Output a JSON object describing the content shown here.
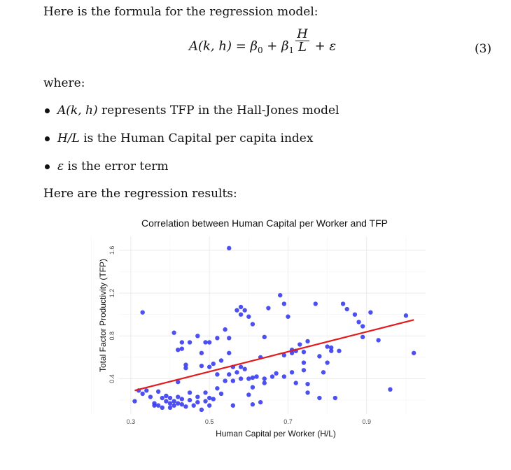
{
  "paper": {
    "intro": "Here is the formula for the regression model:",
    "equation": {
      "lhs": "A(k, h)",
      "eq": " = ",
      "beta0": "β",
      "beta0_sub": "0",
      "plus1": " + ",
      "beta1": "β",
      "beta1_sub": "1",
      "frac_num": "H",
      "frac_den": "L",
      "plus2": " + ",
      "eps": "ε",
      "number": "(3)"
    },
    "where": "where:",
    "bullets": [
      {
        "sym": "A(k, h)",
        "text": " represents TFP in the Hall-Jones model"
      },
      {
        "sym": "H/L",
        "text": " is the Human Capital per capita index"
      },
      {
        "sym": "ε",
        "text": " is the error term"
      }
    ],
    "results_intro": "Here are the regression results:"
  },
  "colors": {
    "points": "#3a3df0",
    "fit_line": "#e31a1c",
    "grid": "#ebebeb",
    "axis_text": "#4d4d4d"
  },
  "chart_data": {
    "type": "scatter",
    "title": "Correlation between Human Capital per Worker and TFP",
    "xlabel": "Human Capital per Worker (H/L)",
    "ylabel": "Total Factor Productivity (TFP)",
    "xlim": [
      0.27,
      1.05
    ],
    "ylim": [
      0.07,
      1.73
    ],
    "x_ticks": [
      "0.3",
      "0.5",
      "0.7",
      "0.9"
    ],
    "y_ticks": [
      "0.4",
      "0.8",
      "1.2",
      "1.6"
    ],
    "grid": true,
    "fit_line": {
      "x": [
        0.31,
        1.02
      ],
      "y": [
        0.29,
        0.95
      ]
    },
    "points": [
      [
        0.31,
        0.19
      ],
      [
        0.32,
        0.29
      ],
      [
        0.33,
        0.26
      ],
      [
        0.34,
        0.29
      ],
      [
        0.35,
        0.23
      ],
      [
        0.36,
        0.17
      ],
      [
        0.36,
        0.15
      ],
      [
        0.37,
        0.28
      ],
      [
        0.37,
        0.15
      ],
      [
        0.38,
        0.22
      ],
      [
        0.38,
        0.13
      ],
      [
        0.39,
        0.19
      ],
      [
        0.39,
        0.24
      ],
      [
        0.4,
        0.17
      ],
      [
        0.4,
        0.13
      ],
      [
        0.4,
        0.22
      ],
      [
        0.41,
        0.15
      ],
      [
        0.41,
        0.19
      ],
      [
        0.42,
        0.23
      ],
      [
        0.42,
        0.17
      ],
      [
        0.42,
        0.37
      ],
      [
        0.43,
        0.21
      ],
      [
        0.43,
        0.16
      ],
      [
        0.44,
        0.14
      ],
      [
        0.45,
        0.27
      ],
      [
        0.45,
        0.2
      ],
      [
        0.46,
        0.15
      ],
      [
        0.47,
        0.23
      ],
      [
        0.47,
        0.18
      ],
      [
        0.48,
        0.11
      ],
      [
        0.49,
        0.27
      ],
      [
        0.49,
        0.19
      ],
      [
        0.5,
        0.22
      ],
      [
        0.5,
        0.15
      ],
      [
        0.51,
        0.21
      ],
      [
        0.52,
        0.31
      ],
      [
        0.52,
        0.44
      ],
      [
        0.53,
        0.26
      ],
      [
        0.54,
        0.38
      ],
      [
        0.56,
        0.15
      ],
      [
        0.56,
        0.38
      ],
      [
        0.57,
        0.46
      ],
      [
        0.58,
        0.4
      ],
      [
        0.58,
        0.51
      ],
      [
        0.59,
        0.49
      ],
      [
        0.6,
        0.4
      ],
      [
        0.6,
        0.25
      ],
      [
        0.61,
        0.41
      ],
      [
        0.61,
        0.16
      ],
      [
        0.62,
        0.42
      ],
      [
        0.63,
        0.18
      ],
      [
        0.64,
        0.4
      ],
      [
        0.64,
        0.36
      ],
      [
        0.66,
        0.42
      ],
      [
        0.67,
        0.45
      ],
      [
        0.69,
        0.42
      ],
      [
        0.69,
        0.62
      ],
      [
        0.71,
        0.46
      ],
      [
        0.71,
        0.67
      ],
      [
        0.72,
        0.36
      ],
      [
        0.74,
        0.48
      ],
      [
        0.74,
        0.55
      ],
      [
        0.75,
        0.35
      ],
      [
        0.75,
        0.27
      ],
      [
        0.78,
        0.22
      ],
      [
        0.78,
        0.61
      ],
      [
        0.79,
        0.46
      ],
      [
        0.8,
        0.55
      ],
      [
        0.81,
        0.66
      ],
      [
        0.82,
        0.22
      ],
      [
        0.83,
        0.66
      ],
      [
        0.33,
        1.02
      ],
      [
        0.42,
        0.67
      ],
      [
        0.43,
        0.68
      ],
      [
        0.43,
        0.74
      ],
      [
        0.44,
        0.5
      ],
      [
        0.44,
        0.53
      ],
      [
        0.45,
        0.74
      ],
      [
        0.47,
        0.8
      ],
      [
        0.48,
        0.64
      ],
      [
        0.48,
        0.52
      ],
      [
        0.49,
        0.74
      ],
      [
        0.5,
        0.74
      ],
      [
        0.5,
        0.51
      ],
      [
        0.51,
        0.54
      ],
      [
        0.52,
        0.78
      ],
      [
        0.53,
        0.57
      ],
      [
        0.54,
        0.86
      ],
      [
        0.55,
        0.44
      ],
      [
        0.55,
        0.64
      ],
      [
        0.55,
        0.78
      ],
      [
        0.56,
        0.51
      ],
      [
        0.57,
        1.04
      ],
      [
        0.58,
        1.0
      ],
      [
        0.58,
        1.07
      ],
      [
        0.59,
        1.04
      ],
      [
        0.6,
        0.98
      ],
      [
        0.61,
        0.91
      ],
      [
        0.64,
        0.79
      ],
      [
        0.65,
        1.06
      ],
      [
        0.68,
        1.18
      ],
      [
        0.69,
        1.1
      ],
      [
        0.7,
        0.98
      ],
      [
        0.71,
        0.64
      ],
      [
        0.72,
        0.66
      ],
      [
        0.73,
        0.72
      ],
      [
        0.74,
        0.65
      ],
      [
        0.75,
        0.75
      ],
      [
        0.77,
        1.1
      ],
      [
        0.8,
        0.7
      ],
      [
        0.81,
        0.69
      ],
      [
        0.84,
        1.1
      ],
      [
        0.85,
        1.05
      ],
      [
        0.87,
        1.0
      ],
      [
        0.88,
        0.93
      ],
      [
        0.89,
        0.89
      ],
      [
        0.89,
        0.79
      ],
      [
        0.91,
        1.02
      ],
      [
        0.93,
        0.76
      ],
      [
        0.96,
        0.3
      ],
      [
        1.0,
        0.99
      ],
      [
        1.02,
        0.64
      ],
      [
        0.55,
        1.62
      ],
      [
        0.61,
        0.32
      ],
      [
        0.63,
        0.6
      ],
      [
        0.41,
        0.83
      ]
    ]
  }
}
